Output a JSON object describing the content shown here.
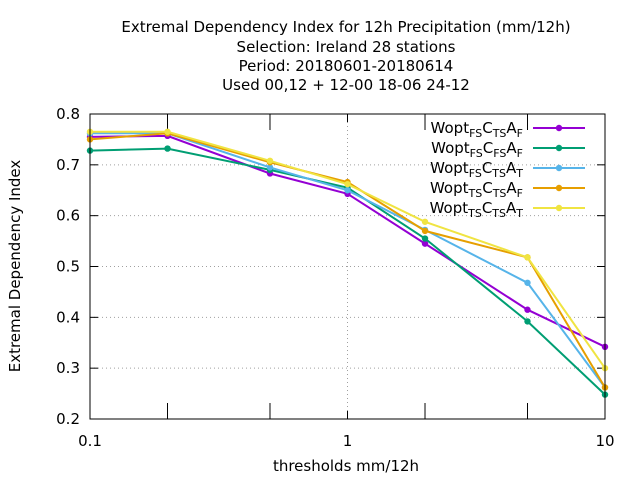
{
  "chart_data": {
    "type": "line",
    "title_lines": [
      "Extremal Dependency Index  for 12h Precipitation (mm/12h)",
      "Selection: Ireland     28 stations",
      "Period: 20180601-20180614",
      "Used  00,12  + 12-00 18-06 24-12"
    ],
    "xlabel": "thresholds mm/12h",
    "ylabel": "Extremal Dependency Index",
    "xscale": "log",
    "xlim": [
      0.1,
      10
    ],
    "ylim": [
      0.2,
      0.8
    ],
    "xticks": [
      {
        "value": 0.1,
        "label": "0.1"
      },
      {
        "value": 1,
        "label": "1"
      },
      {
        "value": 10,
        "label": "10"
      }
    ],
    "xminor": [
      0.2,
      0.5,
      2,
      5
    ],
    "yticks": [
      {
        "value": 0.2,
        "label": "0.2"
      },
      {
        "value": 0.3,
        "label": "0.3"
      },
      {
        "value": 0.4,
        "label": "0.4"
      },
      {
        "value": 0.5,
        "label": "0.5"
      },
      {
        "value": 0.6,
        "label": "0.6"
      },
      {
        "value": 0.7,
        "label": "0.7"
      },
      {
        "value": 0.8,
        "label": "0.8"
      }
    ],
    "grid": true,
    "legend_position": "top-right",
    "x": [
      0.1,
      0.2,
      0.5,
      1,
      2,
      5,
      10
    ],
    "series": [
      {
        "name_parts": [
          "Wopt",
          "FS",
          "C",
          "TS",
          "A",
          "F"
        ],
        "color": "#9400d3",
        "values": [
          0.755,
          0.757,
          0.683,
          0.643,
          0.545,
          0.415,
          0.342
        ]
      },
      {
        "name_parts": [
          "Wopt",
          "FS",
          "C",
          "FS",
          "A",
          "F"
        ],
        "color": "#009e73",
        "values": [
          0.728,
          0.732,
          0.69,
          0.655,
          0.555,
          0.392,
          0.248
        ]
      },
      {
        "name_parts": [
          "Wopt",
          "FS",
          "C",
          "TS",
          "A",
          "T"
        ],
        "color": "#56b4e9",
        "values": [
          0.762,
          0.762,
          0.695,
          0.65,
          0.572,
          0.468,
          0.262
        ]
      },
      {
        "name_parts": [
          "Wopt",
          "TS",
          "C",
          "TS",
          "A",
          "F"
        ],
        "color": "#e69f00",
        "values": [
          0.75,
          0.762,
          0.705,
          0.666,
          0.57,
          0.518,
          0.262
        ]
      },
      {
        "name_parts": [
          "Wopt",
          "TS",
          "C",
          "TS",
          "A",
          "T"
        ],
        "color": "#f0e442",
        "values": [
          0.765,
          0.765,
          0.708,
          0.662,
          0.588,
          0.518,
          0.3
        ]
      }
    ]
  }
}
